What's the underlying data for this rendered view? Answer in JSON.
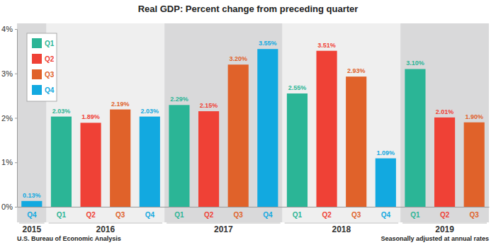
{
  "chart_data": {
    "type": "bar",
    "title": "Real GDP: Percent change from preceding quarter",
    "categories": [
      "Q4",
      "Q1",
      "Q2",
      "Q3",
      "Q4",
      "Q1",
      "Q2",
      "Q3",
      "Q4",
      "Q1",
      "Q2",
      "Q3",
      "Q4",
      "Q1",
      "Q2",
      "Q3"
    ],
    "category_groups": [
      "2015",
      "2016",
      null,
      null,
      null,
      "2017",
      null,
      null,
      null,
      "2018",
      null,
      null,
      null,
      "2019",
      null,
      null
    ],
    "series": [
      {
        "name": "Q1",
        "color": "#2bb596",
        "values": [
          null,
          2.03,
          null,
          null,
          null,
          2.29,
          null,
          null,
          null,
          2.55,
          null,
          null,
          null,
          3.1,
          null,
          null
        ],
        "value_labels": [
          null,
          "2.03%",
          null,
          null,
          null,
          "2.29%",
          null,
          null,
          null,
          "2.55%",
          null,
          null,
          null,
          "3.10%",
          null,
          null
        ]
      },
      {
        "name": "Q2",
        "color": "#ef4136",
        "values": [
          null,
          null,
          1.89,
          null,
          null,
          null,
          2.15,
          null,
          null,
          null,
          3.51,
          null,
          null,
          null,
          2.01,
          null
        ],
        "value_labels": [
          null,
          null,
          "1.89%",
          null,
          null,
          null,
          "2.15%",
          null,
          null,
          null,
          "3.51%",
          null,
          null,
          null,
          "2.01%",
          null
        ]
      },
      {
        "name": "Q3",
        "color": "#e0622a",
        "values": [
          null,
          null,
          null,
          2.19,
          null,
          null,
          null,
          3.2,
          null,
          null,
          null,
          2.93,
          null,
          null,
          null,
          1.9
        ],
        "value_labels": [
          null,
          null,
          null,
          "2.19%",
          null,
          null,
          null,
          "3.20%",
          null,
          null,
          null,
          "2.93%",
          null,
          null,
          null,
          "1.90%"
        ]
      },
      {
        "name": "Q4",
        "color": "#12a9e0",
        "values": [
          0.13,
          null,
          null,
          null,
          2.03,
          null,
          null,
          null,
          3.55,
          null,
          null,
          null,
          1.09,
          null,
          null,
          null
        ],
        "value_labels": [
          "0.13%",
          null,
          null,
          null,
          "2.03%",
          null,
          null,
          null,
          "3.55%",
          null,
          null,
          null,
          "1.09%",
          null,
          null,
          null
        ]
      }
    ],
    "ylim": [
      0,
      4
    ],
    "yticks": [
      {
        "value": 0,
        "label": "0%"
      },
      {
        "value": 1,
        "label": "1%"
      },
      {
        "value": 2,
        "label": "2%"
      },
      {
        "value": 3,
        "label": "3%"
      },
      {
        "value": 4,
        "label": "4%"
      }
    ],
    "grid": false,
    "legend": "top-left",
    "data_labels": true,
    "source": "U.S. Bureau of Economic Analysis",
    "note": "Seasonally adjusted at annual rates"
  }
}
